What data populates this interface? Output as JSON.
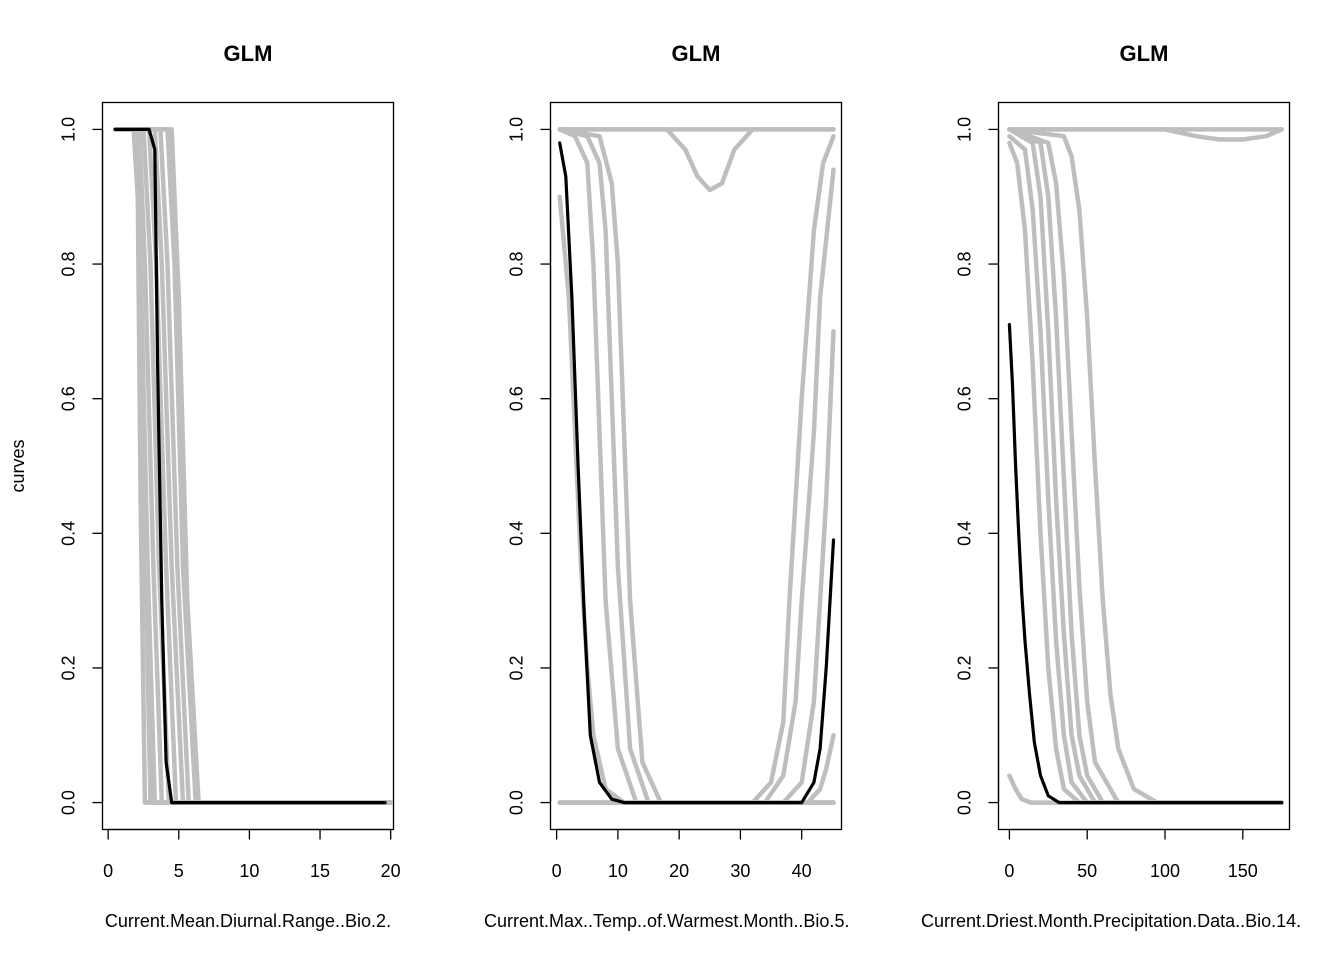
{
  "figure": {
    "ylabel": "curves"
  },
  "chart_data": [
    {
      "type": "line",
      "title": "GLM",
      "xlabel": "Current.Mean.Diurnal.Range..Bio.2.",
      "ylabel": "curves",
      "xlim": [
        -0.4,
        20.2
      ],
      "ylim": [
        -0.04,
        1.04
      ],
      "xticks": [
        "0",
        "5",
        "10",
        "15",
        "20"
      ],
      "xtick_values": [
        0,
        5,
        10,
        15,
        20
      ],
      "yticks": [
        "0.0",
        "0.2",
        "0.4",
        "0.6",
        "0.8",
        "1.0"
      ],
      "ytick_values": [
        0,
        0.2,
        0.4,
        0.6,
        0.8,
        1.0
      ],
      "x_range": [
        0.5,
        19.6
      ],
      "colors": {
        "replicates": "#bebebe",
        "mean": "#000000"
      },
      "series": [
        {
          "role": "replicate",
          "x": [
            0.5,
            1.8,
            2.1,
            2.3,
            2.6,
            20
          ],
          "y": [
            1,
            1,
            0.9,
            0.45,
            0.0,
            0
          ]
        },
        {
          "role": "replicate",
          "x": [
            0.5,
            1.9,
            2.2,
            2.6,
            3.0,
            20
          ],
          "y": [
            1,
            1,
            0.85,
            0.4,
            0.0,
            0
          ]
        },
        {
          "role": "replicate",
          "x": [
            0.5,
            2.0,
            2.3,
            2.8,
            3.3,
            20
          ],
          "y": [
            1,
            1,
            0.8,
            0.35,
            0.0,
            0
          ]
        },
        {
          "role": "replicate",
          "x": [
            0.5,
            2.2,
            2.6,
            3.2,
            3.8,
            20
          ],
          "y": [
            1,
            1,
            0.8,
            0.35,
            0.0,
            0
          ]
        },
        {
          "role": "replicate",
          "x": [
            0.5,
            2.5,
            3.0,
            3.6,
            4.3,
            20
          ],
          "y": [
            1,
            1,
            0.8,
            0.35,
            0.0,
            0
          ]
        },
        {
          "role": "replicate",
          "x": [
            0.5,
            2.9,
            3.4,
            4.1,
            4.8,
            20
          ],
          "y": [
            1,
            1,
            0.8,
            0.35,
            0.0,
            0
          ]
        },
        {
          "role": "replicate",
          "x": [
            0.5,
            3.3,
            3.8,
            4.5,
            5.3,
            20
          ],
          "y": [
            1,
            1,
            0.8,
            0.35,
            0.0,
            0
          ]
        },
        {
          "role": "replicate",
          "x": [
            0.5,
            3.7,
            4.2,
            4.9,
            5.7,
            20
          ],
          "y": [
            1,
            1,
            0.8,
            0.35,
            0.0,
            0
          ]
        },
        {
          "role": "replicate",
          "x": [
            0.5,
            4.2,
            4.7,
            5.3,
            6.2,
            20
          ],
          "y": [
            1,
            1,
            0.8,
            0.35,
            0.0,
            0
          ]
        },
        {
          "role": "replicate",
          "x": [
            0.5,
            4.5,
            5.0,
            5.6,
            6.4,
            20
          ],
          "y": [
            1,
            1,
            0.75,
            0.3,
            0.0,
            0
          ]
        },
        {
          "role": "mean",
          "x": [
            0.5,
            2.9,
            3.3,
            3.5,
            3.8,
            4.1,
            4.5,
            19.6
          ],
          "y": [
            1,
            1,
            0.97,
            0.65,
            0.3,
            0.06,
            0.0,
            0
          ]
        }
      ]
    },
    {
      "type": "line",
      "title": "GLM",
      "xlabel": "Current.Max..Temp..of.Warmest.Month..Bio.5.",
      "ylabel": "",
      "xlim": [
        -1,
        46.5
      ],
      "ylim": [
        -0.04,
        1.04
      ],
      "xticks": [
        "0",
        "10",
        "20",
        "30",
        "40"
      ],
      "xtick_values": [
        0,
        10,
        20,
        30,
        40
      ],
      "yticks": [
        "0.0",
        "0.2",
        "0.4",
        "0.6",
        "0.8",
        "1.0"
      ],
      "ytick_values": [
        0,
        0.2,
        0.4,
        0.6,
        0.8,
        1.0
      ],
      "x_range": [
        0.5,
        45.2
      ],
      "colors": {
        "replicates": "#bebebe",
        "mean": "#000000"
      },
      "series": [
        {
          "role": "replicate",
          "x": [
            0.5,
            45.2
          ],
          "y": [
            1,
            1
          ]
        },
        {
          "role": "replicate",
          "x": [
            0.5,
            45.2
          ],
          "y": [
            0,
            0
          ]
        },
        {
          "role": "replicate",
          "x": [
            0.5,
            18,
            21,
            23,
            25,
            27,
            29,
            32,
            45.2
          ],
          "y": [
            1,
            1,
            0.97,
            0.93,
            0.91,
            0.92,
            0.97,
            1,
            1
          ]
        },
        {
          "role": "replicate",
          "x": [
            0.5,
            2,
            3,
            4,
            5,
            6,
            8,
            11,
            45.2
          ],
          "y": [
            0.9,
            0.75,
            0.55,
            0.35,
            0.2,
            0.1,
            0.02,
            0,
            0
          ]
        },
        {
          "role": "replicate",
          "x": [
            0.5,
            3,
            5,
            6,
            7,
            8,
            10,
            13,
            45.2
          ],
          "y": [
            1,
            0.99,
            0.95,
            0.8,
            0.55,
            0.3,
            0.08,
            0,
            0
          ]
        },
        {
          "role": "replicate",
          "x": [
            0.5,
            5,
            7,
            8,
            9,
            10,
            12,
            15,
            45.2
          ],
          "y": [
            1,
            0.99,
            0.95,
            0.85,
            0.6,
            0.35,
            0.08,
            0,
            0
          ]
        },
        {
          "role": "replicate",
          "x": [
            0.5,
            7,
            9,
            10,
            11,
            12,
            14,
            17,
            45.2
          ],
          "y": [
            1,
            0.99,
            0.92,
            0.8,
            0.55,
            0.3,
            0.06,
            0,
            0
          ]
        },
        {
          "role": "replicate",
          "x": [
            0.5,
            32,
            35,
            37,
            38,
            40,
            42,
            43.5,
            45.2
          ],
          "y": [
            0,
            0,
            0.03,
            0.12,
            0.3,
            0.6,
            0.85,
            0.95,
            0.99
          ]
        },
        {
          "role": "replicate",
          "x": [
            0.5,
            34,
            37,
            39,
            40,
            42,
            43,
            45.2
          ],
          "y": [
            0,
            0,
            0.04,
            0.15,
            0.3,
            0.55,
            0.75,
            0.94
          ]
        },
        {
          "role": "replicate",
          "x": [
            0.5,
            37,
            40,
            42,
            43,
            44,
            45.2
          ],
          "y": [
            0,
            0,
            0.03,
            0.15,
            0.3,
            0.45,
            0.7
          ]
        },
        {
          "role": "replicate",
          "x": [
            0.5,
            41,
            43,
            44,
            45.2
          ],
          "y": [
            0,
            0,
            0.02,
            0.05,
            0.1
          ]
        },
        {
          "role": "mean",
          "x": [
            0.5,
            1.5,
            2.5,
            3.5,
            4.5,
            5.5,
            7,
            9,
            11,
            40,
            42,
            43,
            44,
            45.2
          ],
          "y": [
            0.98,
            0.93,
            0.75,
            0.5,
            0.28,
            0.1,
            0.03,
            0.005,
            0,
            0,
            0.03,
            0.08,
            0.2,
            0.39
          ]
        }
      ]
    },
    {
      "type": "line",
      "title": "GLM",
      "xlabel": "Current.Driest.Month.Precipitation.Data..Bio.14.",
      "ylabel": "",
      "xlim": [
        -7,
        180
      ],
      "ylim": [
        -0.04,
        1.04
      ],
      "xticks": [
        "0",
        "50",
        "100",
        "150"
      ],
      "xtick_values": [
        0,
        50,
        100,
        150
      ],
      "yticks": [
        "0.0",
        "0.2",
        "0.4",
        "0.6",
        "0.8",
        "1.0"
      ],
      "ytick_values": [
        0,
        0.2,
        0.4,
        0.6,
        0.8,
        1.0
      ],
      "x_range": [
        0,
        175
      ],
      "colors": {
        "replicates": "#bebebe",
        "mean": "#000000"
      },
      "series": [
        {
          "role": "replicate",
          "x": [
            0,
            175
          ],
          "y": [
            1,
            1
          ]
        },
        {
          "role": "replicate",
          "x": [
            0,
            100,
            120,
            135,
            150,
            165,
            175
          ],
          "y": [
            1,
            1,
            0.99,
            0.985,
            0.985,
            0.99,
            1
          ]
        },
        {
          "role": "replicate",
          "x": [
            0,
            4,
            8,
            14,
            175
          ],
          "y": [
            0.04,
            0.02,
            0.005,
            0,
            0
          ]
        },
        {
          "role": "replicate",
          "x": [
            0,
            5,
            10,
            15,
            20,
            25,
            30,
            35,
            45,
            175
          ],
          "y": [
            0.98,
            0.95,
            0.85,
            0.65,
            0.4,
            0.2,
            0.08,
            0.02,
            0,
            0
          ]
        },
        {
          "role": "replicate",
          "x": [
            0,
            10,
            15,
            20,
            25,
            30,
            35,
            40,
            50,
            175
          ],
          "y": [
            0.99,
            0.97,
            0.88,
            0.7,
            0.45,
            0.24,
            0.1,
            0.03,
            0,
            0
          ]
        },
        {
          "role": "replicate",
          "x": [
            0,
            15,
            20,
            25,
            30,
            35,
            40,
            45,
            55,
            175
          ],
          "y": [
            1,
            0.98,
            0.9,
            0.7,
            0.45,
            0.25,
            0.1,
            0.04,
            0,
            0
          ]
        },
        {
          "role": "replicate",
          "x": [
            0,
            20,
            25,
            30,
            35,
            40,
            45,
            50,
            60,
            175
          ],
          "y": [
            1,
            0.98,
            0.9,
            0.72,
            0.48,
            0.25,
            0.1,
            0.04,
            0,
            0
          ]
        },
        {
          "role": "replicate",
          "x": [
            0,
            25,
            30,
            35,
            40,
            45,
            50,
            55,
            70,
            175
          ],
          "y": [
            1,
            0.98,
            0.92,
            0.78,
            0.55,
            0.32,
            0.15,
            0.06,
            0,
            0
          ]
        },
        {
          "role": "replicate",
          "x": [
            0,
            35,
            40,
            45,
            50,
            55,
            60,
            65,
            70,
            80,
            95,
            175
          ],
          "y": [
            1,
            0.99,
            0.96,
            0.88,
            0.72,
            0.5,
            0.3,
            0.16,
            0.08,
            0.02,
            0,
            0
          ]
        },
        {
          "role": "mean",
          "x": [
            0,
            2,
            4,
            6,
            8,
            10,
            13,
            16,
            20,
            25,
            32,
            175
          ],
          "y": [
            0.71,
            0.62,
            0.5,
            0.4,
            0.31,
            0.24,
            0.16,
            0.09,
            0.04,
            0.01,
            0,
            0
          ]
        }
      ]
    }
  ]
}
